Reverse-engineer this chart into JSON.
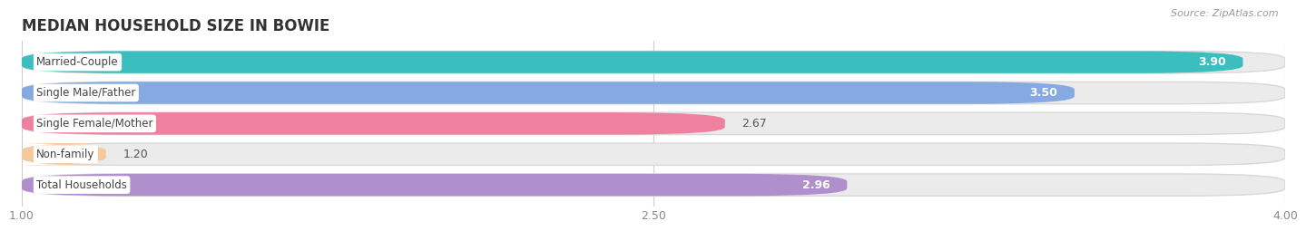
{
  "title": "MEDIAN HOUSEHOLD SIZE IN BOWIE",
  "source": "Source: ZipAtlas.com",
  "categories": [
    "Married-Couple",
    "Single Male/Father",
    "Single Female/Mother",
    "Non-family",
    "Total Households"
  ],
  "values": [
    3.9,
    3.5,
    2.67,
    1.2,
    2.96
  ],
  "bar_colors": [
    "#3bbfbe",
    "#85a9e0",
    "#f080a0",
    "#f5c99a",
    "#b090cc"
  ],
  "bar_bg_colors": [
    "#ebebeb",
    "#ebebeb",
    "#ebebeb",
    "#ebebeb",
    "#ebebeb"
  ],
  "fig_bg": "#ffffff",
  "xlim": [
    1.0,
    4.0
  ],
  "xticks": [
    1.0,
    2.5,
    4.0
  ],
  "label_fontsize": 8.5,
  "value_fontsize": 9,
  "title_fontsize": 12,
  "source_fontsize": 8,
  "bar_height": 0.72,
  "value_inside": [
    true,
    true,
    false,
    false,
    true
  ]
}
